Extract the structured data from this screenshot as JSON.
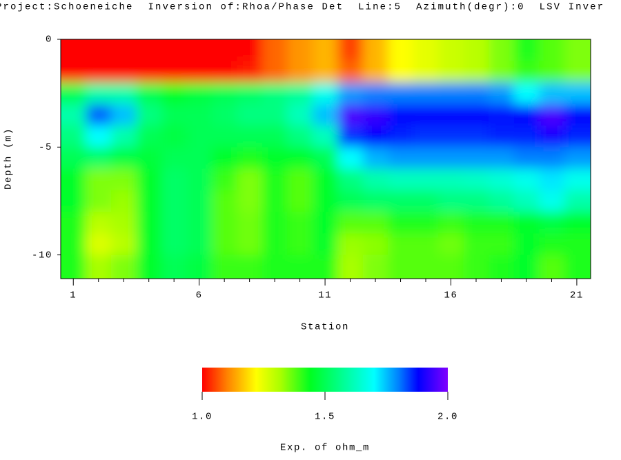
{
  "chart_data": {
    "type": "heatmap",
    "title": "Project:Schoeneiche  Inversion of:Rhoa/Phase Det  Line:5  Azimuth(degr):0  LSV Inver",
    "xlabel": "Station",
    "ylabel": "Depth (m)",
    "x": [
      1,
      2,
      3,
      4,
      5,
      6,
      7,
      8,
      9,
      10,
      11,
      12,
      13,
      14,
      15,
      16,
      17,
      18,
      19,
      20,
      21
    ],
    "y": [
      -0.5,
      -1.5,
      -2.5,
      -3.5,
      -4.5,
      -5.5,
      -6.5,
      -7.5,
      -8.5,
      -9.5,
      -10.5
    ],
    "values": [
      [
        1.0,
        1.0,
        1.0,
        1.0,
        1.0,
        1.0,
        1.0,
        1.0,
        1.08,
        1.12,
        1.15,
        1.05,
        1.15,
        1.22,
        1.25,
        1.28,
        1.3,
        1.35,
        1.42,
        1.38,
        1.35
      ],
      [
        1.0,
        1.0,
        1.0,
        1.0,
        1.0,
        1.0,
        1.0,
        1.02,
        1.08,
        1.12,
        1.15,
        1.08,
        1.15,
        1.22,
        1.25,
        1.28,
        1.3,
        1.35,
        1.4,
        1.38,
        1.35
      ],
      [
        1.5,
        1.6,
        1.6,
        1.5,
        1.45,
        1.48,
        1.5,
        1.52,
        1.55,
        1.58,
        1.68,
        1.78,
        1.8,
        1.8,
        1.8,
        1.8,
        1.8,
        1.78,
        1.7,
        1.75,
        1.75
      ],
      [
        1.6,
        1.82,
        1.75,
        1.55,
        1.5,
        1.5,
        1.52,
        1.55,
        1.55,
        1.62,
        1.75,
        1.95,
        1.93,
        1.88,
        1.88,
        1.88,
        1.88,
        1.87,
        1.88,
        1.95,
        1.88
      ],
      [
        1.55,
        1.7,
        1.6,
        1.5,
        1.48,
        1.5,
        1.5,
        1.5,
        1.5,
        1.55,
        1.62,
        1.85,
        1.88,
        1.86,
        1.85,
        1.85,
        1.85,
        1.86,
        1.86,
        1.9,
        1.86
      ],
      [
        1.5,
        1.52,
        1.48,
        1.47,
        1.5,
        1.5,
        1.45,
        1.42,
        1.45,
        1.45,
        1.5,
        1.7,
        1.76,
        1.78,
        1.78,
        1.78,
        1.78,
        1.78,
        1.8,
        1.8,
        1.78
      ],
      [
        1.45,
        1.35,
        1.35,
        1.45,
        1.52,
        1.5,
        1.4,
        1.35,
        1.42,
        1.38,
        1.45,
        1.55,
        1.6,
        1.62,
        1.62,
        1.62,
        1.63,
        1.65,
        1.68,
        1.72,
        1.68
      ],
      [
        1.45,
        1.35,
        1.33,
        1.45,
        1.52,
        1.5,
        1.38,
        1.35,
        1.42,
        1.38,
        1.45,
        1.5,
        1.52,
        1.52,
        1.52,
        1.55,
        1.55,
        1.58,
        1.62,
        1.68,
        1.6
      ],
      [
        1.42,
        1.3,
        1.32,
        1.45,
        1.52,
        1.5,
        1.38,
        1.36,
        1.42,
        1.4,
        1.45,
        1.38,
        1.38,
        1.42,
        1.42,
        1.4,
        1.42,
        1.42,
        1.45,
        1.48,
        1.45
      ],
      [
        1.42,
        1.26,
        1.3,
        1.45,
        1.52,
        1.5,
        1.38,
        1.36,
        1.42,
        1.4,
        1.45,
        1.33,
        1.34,
        1.38,
        1.38,
        1.36,
        1.4,
        1.4,
        1.45,
        1.42,
        1.42
      ],
      [
        1.42,
        1.32,
        1.35,
        1.45,
        1.5,
        1.48,
        1.4,
        1.4,
        1.42,
        1.42,
        1.42,
        1.32,
        1.35,
        1.38,
        1.38,
        1.38,
        1.4,
        1.42,
        1.45,
        1.38,
        1.42
      ]
    ],
    "xlim": [
      0.5,
      21.55
    ],
    "xticks": [
      1,
      6,
      11,
      16,
      21
    ],
    "xminor_ticks": [
      2,
      3,
      4,
      5,
      7,
      8,
      9,
      10,
      12,
      13,
      14,
      15,
      17,
      18,
      19,
      20
    ],
    "ylim": [
      -11.1,
      0
    ],
    "yticks": [
      0,
      -5,
      -10
    ],
    "colorscale": [
      [
        1.0,
        "#ff0000"
      ],
      [
        1.1,
        "#ff8000"
      ],
      [
        1.22,
        "#ffff00"
      ],
      [
        1.32,
        "#a8ff00"
      ],
      [
        1.44,
        "#00ff20"
      ],
      [
        1.58,
        "#00ff9a"
      ],
      [
        1.7,
        "#00ffff"
      ],
      [
        1.8,
        "#0080ff"
      ],
      [
        1.88,
        "#0000ff"
      ],
      [
        2.0,
        "#8000ff"
      ]
    ],
    "clim": [
      1.0,
      2.0
    ],
    "colorbar_ticks": [
      {
        "value": 1.0,
        "label": "1.0"
      },
      {
        "value": 1.5,
        "label": "1.5"
      },
      {
        "value": 2.0,
        "label": "2.0"
      }
    ],
    "colorbar_label": "Exp. of ohm_m"
  }
}
